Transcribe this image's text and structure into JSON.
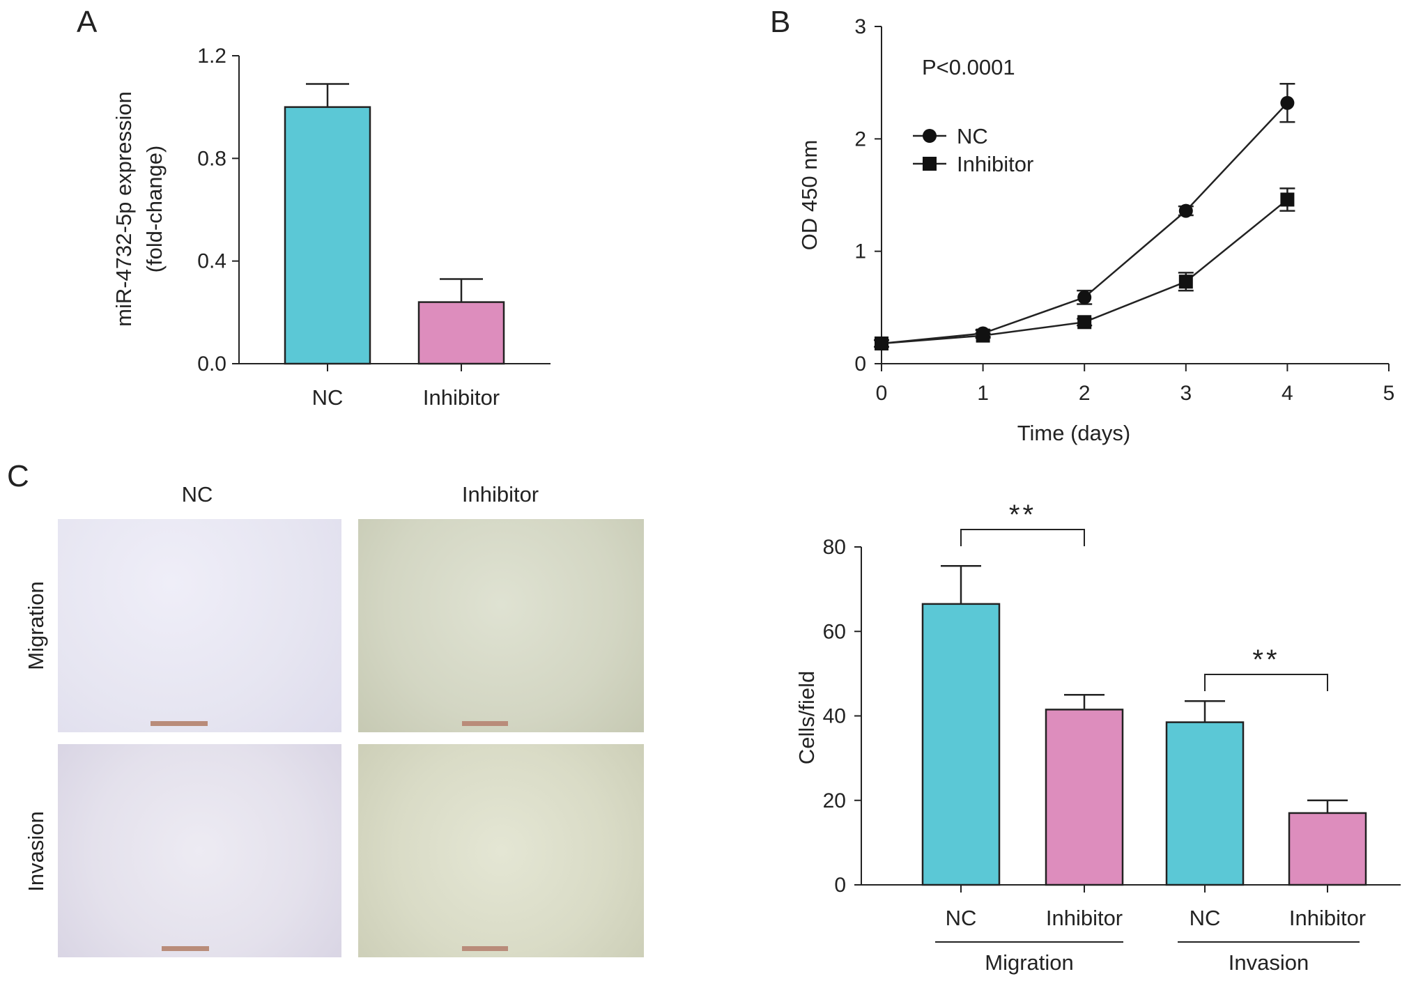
{
  "panels": {
    "a": "A",
    "b": "B",
    "c": "C"
  },
  "chart_data": [
    {
      "panel": "A",
      "type": "bar",
      "categories": [
        "NC",
        "Inhibitor"
      ],
      "values": [
        1.0,
        0.24
      ],
      "errors": [
        0.09,
        0.09
      ],
      "colors": [
        "#5bc8d6",
        "#dd8dbd"
      ],
      "title": "",
      "xlabel": "",
      "ylabel": [
        "miR-4732-5p expression",
        "(fold-change)"
      ],
      "ylim": [
        0,
        1.2
      ],
      "yticks": [
        0.0,
        0.4,
        0.8,
        1.2
      ],
      "ytick_labels": [
        "0.0",
        "0.4",
        "0.8",
        "1.2"
      ],
      "grid": false
    },
    {
      "panel": "B",
      "type": "line",
      "x": [
        0,
        1,
        2,
        3,
        4
      ],
      "series": [
        {
          "name": "NC",
          "marker": "circle",
          "values": [
            0.18,
            0.27,
            0.59,
            1.36,
            2.32
          ],
          "errors": [
            0.03,
            0.03,
            0.06,
            0.04,
            0.17
          ]
        },
        {
          "name": "Inhibitor",
          "marker": "square",
          "values": [
            0.18,
            0.25,
            0.37,
            0.73,
            1.46
          ],
          "errors": [
            0.03,
            0.02,
            0.03,
            0.08,
            0.1
          ]
        }
      ],
      "annotation": "P<0.0001",
      "xlabel": "Time (days)",
      "ylabel": "OD 450 nm",
      "xlim": [
        0,
        5
      ],
      "ylim": [
        0,
        3
      ],
      "xticks": [
        "0",
        "1",
        "2",
        "3",
        "4",
        "5"
      ],
      "yticks": [
        "0",
        "1",
        "2",
        "3"
      ],
      "legend": "top-left",
      "grid": false
    },
    {
      "panel": "C",
      "type": "bar",
      "categories": [
        "NC",
        "Inhibitor",
        "NC",
        "Inhibitor"
      ],
      "groups": [
        "Migration",
        "Invasion"
      ],
      "values": [
        66.5,
        41.5,
        38.5,
        17
      ],
      "errors": [
        9,
        3.5,
        5,
        3
      ],
      "colors": [
        "#5bc8d6",
        "#dd8dbd",
        "#5bc8d6",
        "#dd8dbd"
      ],
      "significance": [
        {
          "between": [
            0,
            1
          ],
          "label": "**"
        },
        {
          "between": [
            2,
            3
          ],
          "label": "**"
        }
      ],
      "title": "",
      "xlabel": "",
      "ylabel": "Cells/field",
      "ylim": [
        0,
        80
      ],
      "yticks": [
        "0",
        "20",
        "40",
        "60",
        "80"
      ],
      "grid": false
    }
  ],
  "micrographs": {
    "columns": [
      "NC",
      "Inhibitor"
    ],
    "rows": [
      "Migration",
      "Invasion"
    ]
  }
}
